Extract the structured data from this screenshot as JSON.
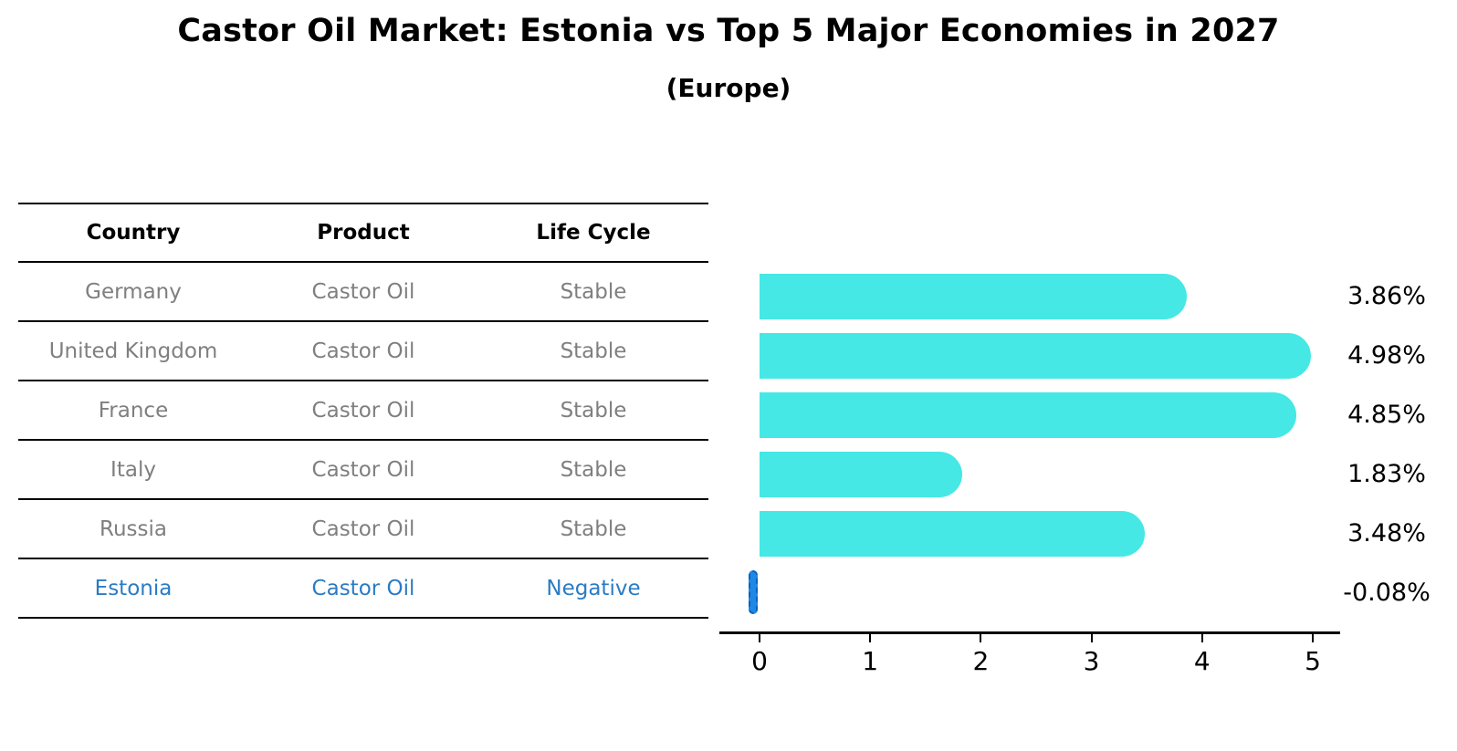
{
  "title": "Castor Oil Market: Estonia vs Top 5 Major Economies in 2027",
  "subtitle": "(Europe)",
  "table": {
    "headers": [
      "Country",
      "Product",
      "Life Cycle"
    ],
    "rows": [
      {
        "country": "Germany",
        "product": "Castor Oil",
        "life_cycle": "Stable",
        "highlight": false
      },
      {
        "country": "United Kingdom",
        "product": "Castor Oil",
        "life_cycle": "Stable",
        "highlight": false
      },
      {
        "country": "France",
        "product": "Castor Oil",
        "life_cycle": "Stable",
        "highlight": false
      },
      {
        "country": "Italy",
        "product": "Castor Oil",
        "life_cycle": "Stable",
        "highlight": false
      },
      {
        "country": "Russia",
        "product": "Castor Oil",
        "life_cycle": "Stable",
        "highlight": false
      },
      {
        "country": "Estonia",
        "product": "Castor Oil",
        "life_cycle": "Negative",
        "highlight": true
      }
    ]
  },
  "chart_data": {
    "type": "bar",
    "orientation": "horizontal",
    "categories": [
      "Germany",
      "United Kingdom",
      "France",
      "Italy",
      "Russia",
      "Estonia"
    ],
    "values": [
      3.86,
      4.98,
      4.85,
      1.83,
      3.48,
      -0.08
    ],
    "value_labels": [
      "3.86%",
      "4.98%",
      "4.85%",
      "1.83%",
      "3.48%",
      "-0.08%"
    ],
    "title": "Castor Oil Market: Estonia vs Top 5 Major Economies in 2027 (Europe)",
    "xlabel": "",
    "ylabel": "",
    "xlim": [
      0,
      5
    ],
    "xticks": [
      0,
      1,
      2,
      3,
      4,
      5
    ],
    "grid": false,
    "legend": "none",
    "bar_color": "#45e8e4",
    "highlight_bar_color": "#1e88e5",
    "highlight_index": 5
  },
  "colors": {
    "highlight_text": "#2b7bc4",
    "row_text": "#7f7f7f",
    "header_text": "#000000",
    "axis": "#000000"
  }
}
